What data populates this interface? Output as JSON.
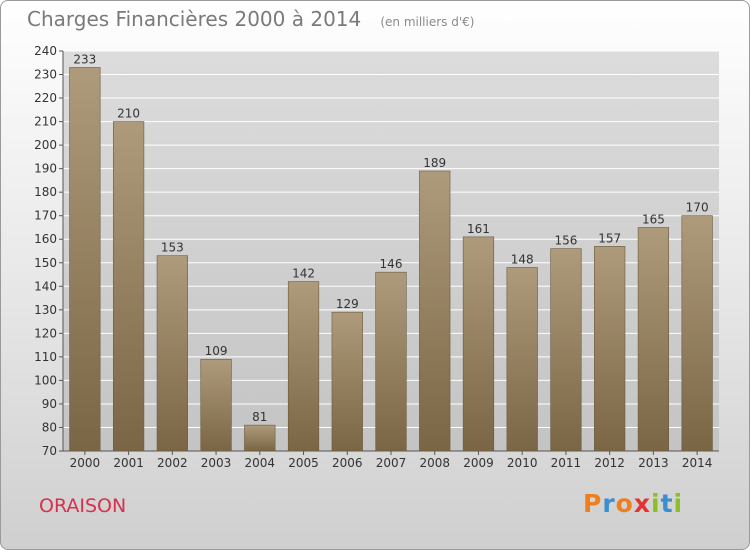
{
  "header": {
    "title": "Charges Financières 2000 à 2014",
    "subtitle": "(en milliers d'€)"
  },
  "footer": {
    "town": "ORAISON",
    "logo_letters": [
      "P",
      "r",
      "o",
      "x",
      "i",
      "t",
      "i"
    ],
    "logo_colors": [
      "#f07d1e",
      "#3a8fd0",
      "#f07d1e",
      "#e3342f",
      "#8cbf26",
      "#3a8fd0",
      "#8cbf26"
    ]
  },
  "colors": {
    "bar_top": "#ae9b7b",
    "bar_bottom": "#7a6645",
    "grid": "#ffffff",
    "plot_bg_top": "#dcdcdc",
    "plot_bg_bottom": "#c4c4c4"
  },
  "chart_data": {
    "type": "bar",
    "title": "Charges Financières 2000 à 2014",
    "subtitle": "(en milliers d'€)",
    "categories": [
      "2000",
      "2001",
      "2002",
      "2003",
      "2004",
      "2005",
      "2006",
      "2007",
      "2008",
      "2009",
      "2010",
      "2011",
      "2012",
      "2013",
      "2014"
    ],
    "values": [
      233,
      210,
      153,
      109,
      81,
      142,
      129,
      146,
      189,
      161,
      148,
      156,
      157,
      165,
      170
    ],
    "ylim": [
      70,
      240
    ],
    "yticks": [
      70,
      80,
      90,
      100,
      110,
      120,
      130,
      140,
      150,
      160,
      170,
      180,
      190,
      200,
      210,
      220,
      230,
      240
    ],
    "grid": true,
    "data_labels": true
  }
}
